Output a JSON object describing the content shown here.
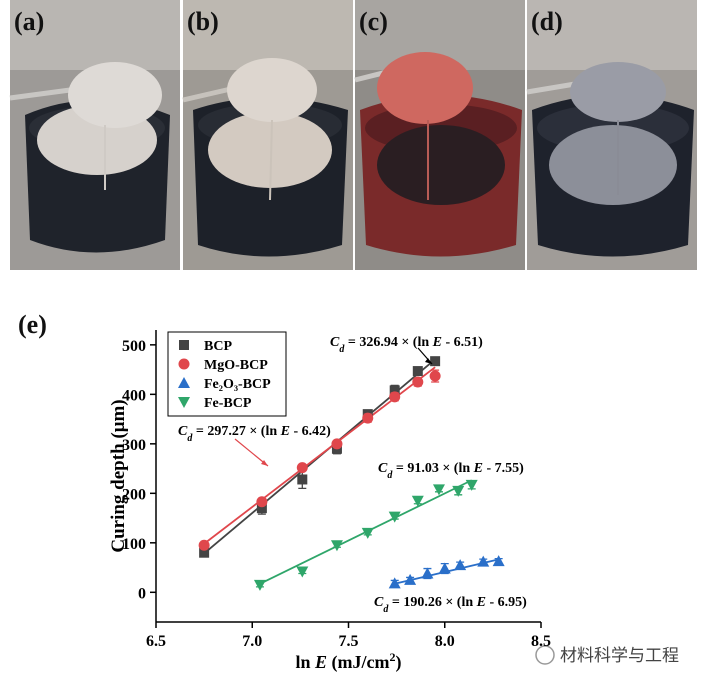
{
  "panels": [
    "(a)",
    "(b)",
    "(c)",
    "(d)"
  ],
  "chart_data": {
    "type": "scatter",
    "panel_label": "(e)",
    "xlabel": [
      "ln ",
      "E",
      " (mJ/cm",
      "2",
      ")"
    ],
    "ylabel": "Curing depth (μm)",
    "xlim": [
      6.5,
      8.5
    ],
    "ylim": [
      -60,
      530
    ],
    "xticks": [
      6.5,
      {
        "value": 7,
        "label": "7.0"
      },
      7.5,
      {
        "value": 8,
        "label": "8.0"
      },
      8.5
    ],
    "yticks": [
      0,
      100,
      200,
      300,
      400,
      500
    ],
    "legend": "top-left",
    "series": [
      {
        "name": "BCP",
        "color": "#444444",
        "marker": "square",
        "x": [
          6.75,
          7.05,
          7.26,
          7.44,
          7.6,
          7.74,
          7.86,
          7.95
        ],
        "values": [
          80,
          170,
          228,
          290,
          360,
          408,
          447,
          467
        ],
        "errors": [
          5,
          12,
          18,
          10,
          8,
          10,
          5,
          5
        ],
        "fit": {
          "slope": 326.94,
          "intercept": 6.51
        },
        "annotation": [
          "C",
          "d",
          " = 326.94 × (ln ",
          "E",
          " - 6.51)"
        ]
      },
      {
        "name": "MgO-BCP",
        "color": "#e0474c",
        "marker": "circle",
        "x": [
          6.75,
          7.05,
          7.26,
          7.44,
          7.6,
          7.74,
          7.86,
          7.95
        ],
        "values": [
          95,
          183,
          252,
          300,
          352,
          395,
          425,
          437
        ],
        "errors": [
          4,
          5,
          6,
          6,
          8,
          8,
          8,
          12
        ],
        "fit": {
          "slope": 297.27,
          "intercept": 6.42
        },
        "annotation": [
          "C",
          "d",
          " = 297.27 × (ln ",
          "E",
          " - 6.42)"
        ]
      },
      {
        "name": "Fe₂O₃-BCP",
        "color": "#2a6fc9",
        "marker": "triangle-up",
        "x": [
          7.74,
          7.82,
          7.91,
          8.0,
          8.08,
          8.2,
          8.28
        ],
        "values": [
          18,
          25,
          38,
          48,
          55,
          62,
          63
        ],
        "errors": [
          6,
          5,
          10,
          10,
          6,
          5,
          5
        ],
        "fit": {
          "slope": 91.03,
          "intercept": 7.55
        },
        "annotation": [
          "C",
          "d",
          " = 91.03 × (ln ",
          "E",
          " - 7.55)"
        ]
      },
      {
        "name": "Fe-BCP",
        "color": "#2fa66a",
        "marker": "triangle-down",
        "x": [
          7.04,
          7.26,
          7.44,
          7.6,
          7.74,
          7.86,
          7.97,
          8.07,
          8.14
        ],
        "values": [
          15,
          42,
          95,
          120,
          153,
          185,
          208,
          205,
          217
        ],
        "errors": [
          4,
          4,
          4,
          4,
          5,
          6,
          5,
          8,
          8
        ],
        "fit": {
          "slope": 190.26,
          "intercept": 6.95
        },
        "annotation": [
          "C",
          "d",
          " = 190.26 × (ln ",
          "E",
          " - 6.95)"
        ]
      }
    ]
  },
  "watermark": "材料科学与工程"
}
